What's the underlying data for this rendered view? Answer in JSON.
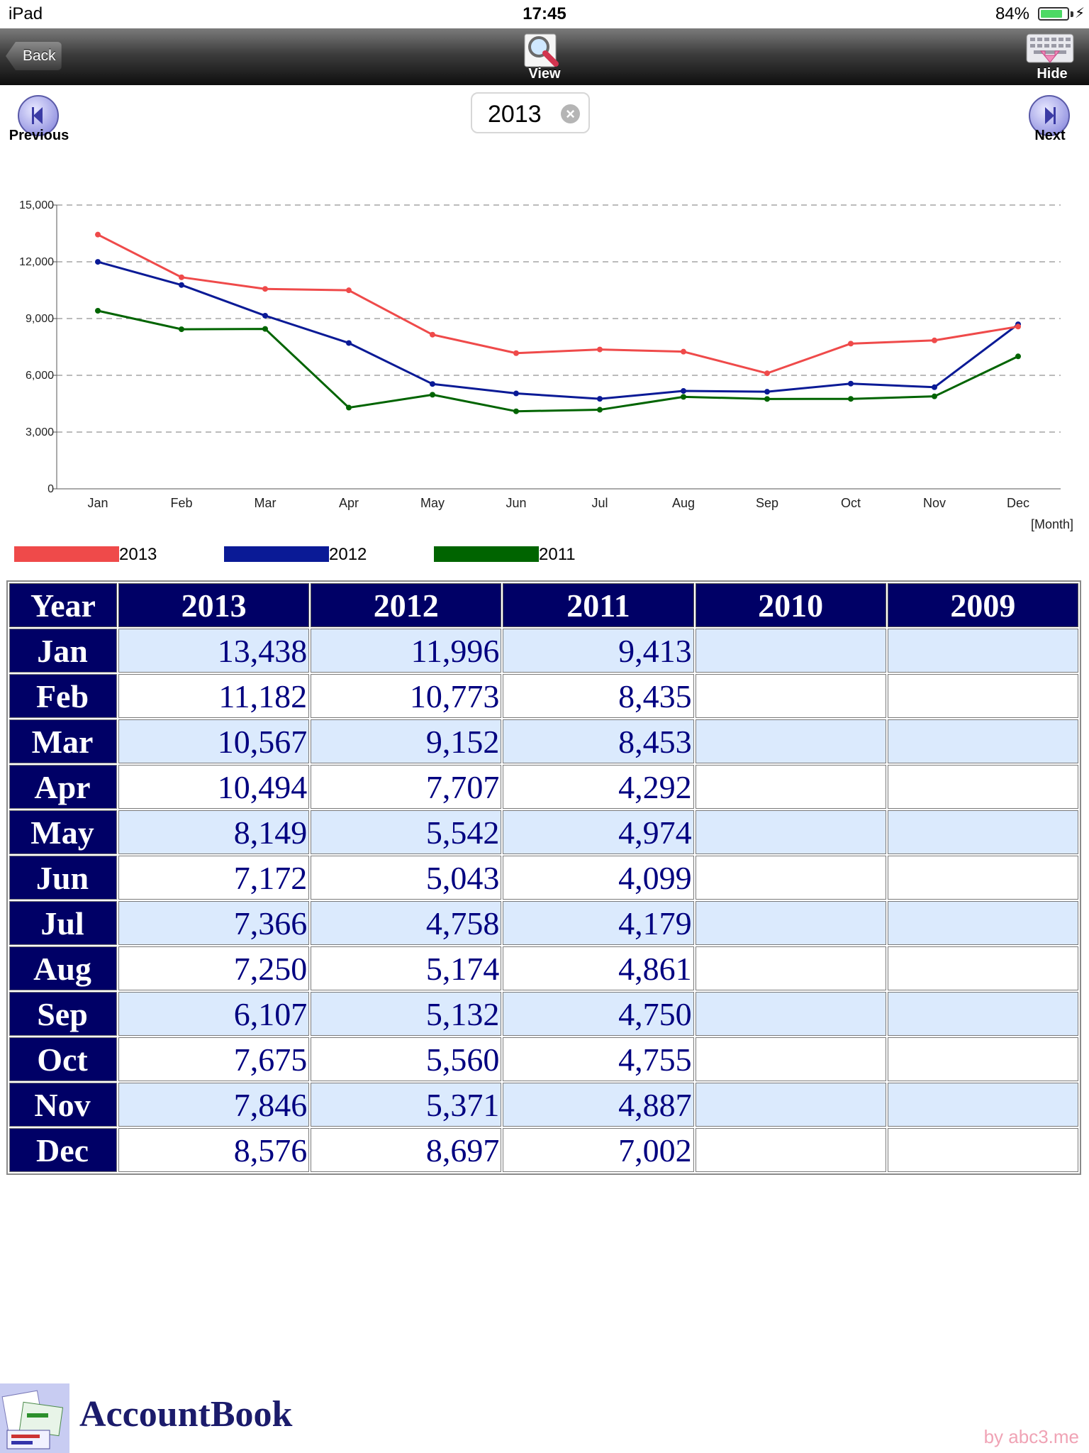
{
  "status_bar": {
    "device": "iPad",
    "time": "17:45",
    "battery_percent": "84%",
    "battery_level": 0.84
  },
  "toolbar": {
    "back_label": "Back",
    "view_label": "View",
    "hide_label": "Hide"
  },
  "nav": {
    "previous_label": "Previous",
    "next_label": "Next",
    "year_value": "2013"
  },
  "chart_data": {
    "type": "line",
    "categories": [
      "Jan",
      "Feb",
      "Mar",
      "Apr",
      "May",
      "Jun",
      "Jul",
      "Aug",
      "Sep",
      "Oct",
      "Nov",
      "Dec"
    ],
    "series": [
      {
        "name": "2013",
        "color": "#ef4a4a",
        "values": [
          13438,
          11182,
          10567,
          10494,
          8149,
          7172,
          7366,
          7250,
          6107,
          7675,
          7846,
          8576
        ]
      },
      {
        "name": "2012",
        "color": "#0a1a96",
        "values": [
          11996,
          10773,
          9152,
          7707,
          5542,
          5043,
          4758,
          5174,
          5132,
          5560,
          5371,
          8697
        ]
      },
      {
        "name": "2011",
        "color": "#006400",
        "values": [
          9413,
          8435,
          8453,
          4292,
          4974,
          4099,
          4179,
          4861,
          4750,
          4755,
          4887,
          7002
        ]
      }
    ],
    "y_ticks": [
      "0",
      "3,000",
      "6,000",
      "9,000",
      "12,000",
      "15,000"
    ],
    "ylim": [
      0,
      15000
    ],
    "xlabel": "[Month]",
    "ylabel": "",
    "grid": true,
    "legend_position": "bottom-left"
  },
  "table": {
    "header": [
      "Year",
      "2013",
      "2012",
      "2011",
      "2010",
      "2009"
    ],
    "rows": [
      {
        "month": "Jan",
        "values": [
          "13,438",
          "11,996",
          "9,413",
          "",
          ""
        ]
      },
      {
        "month": "Feb",
        "values": [
          "11,182",
          "10,773",
          "8,435",
          "",
          ""
        ]
      },
      {
        "month": "Mar",
        "values": [
          "10,567",
          "9,152",
          "8,453",
          "",
          ""
        ]
      },
      {
        "month": "Apr",
        "values": [
          "10,494",
          "7,707",
          "4,292",
          "",
          ""
        ]
      },
      {
        "month": "May",
        "values": [
          "8,149",
          "5,542",
          "4,974",
          "",
          ""
        ]
      },
      {
        "month": "Jun",
        "values": [
          "7,172",
          "5,043",
          "4,099",
          "",
          ""
        ]
      },
      {
        "month": "Jul",
        "values": [
          "7,366",
          "4,758",
          "4,179",
          "",
          ""
        ]
      },
      {
        "month": "Aug",
        "values": [
          "7,250",
          "5,174",
          "4,861",
          "",
          ""
        ]
      },
      {
        "month": "Sep",
        "values": [
          "6,107",
          "5,132",
          "4,750",
          "",
          ""
        ]
      },
      {
        "month": "Oct",
        "values": [
          "7,675",
          "5,560",
          "4,755",
          "",
          ""
        ]
      },
      {
        "month": "Nov",
        "values": [
          "7,846",
          "5,371",
          "4,887",
          "",
          ""
        ]
      },
      {
        "month": "Dec",
        "values": [
          "8,576",
          "8,697",
          "7,002",
          "",
          ""
        ]
      }
    ]
  },
  "footer": {
    "app_name": "AccountBook",
    "credit": "by abc3.me"
  },
  "icons": {
    "back": "back-arrow-icon",
    "view": "magnifier-icon",
    "hide": "keyboard-hide-icon",
    "previous": "chevron-left-icon",
    "next": "chevron-right-icon",
    "clear": "clear-icon"
  }
}
